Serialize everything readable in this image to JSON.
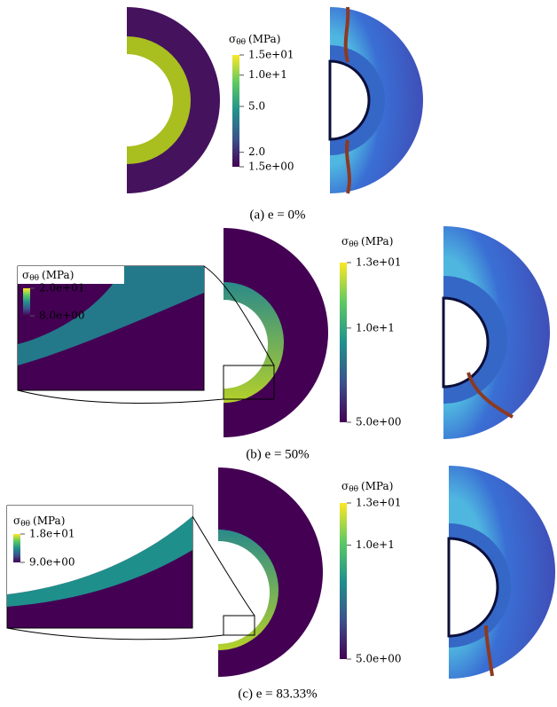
{
  "panels": [
    {
      "caption": "(a) e = 0%",
      "colorbar": {
        "symbol": "σ",
        "subscript": "θθ",
        "unit": "(MPa)",
        "ticks": [
          "1.5e+01",
          "1.0e+1",
          "5.0",
          "2.0",
          "1.5e+00"
        ]
      }
    },
    {
      "caption": "(b) e = 50%",
      "colorbar": {
        "symbol": "σ",
        "subscript": "θθ",
        "unit": "(MPa)",
        "ticks": [
          "1.3e+01",
          "1.0e+1",
          "5.0e+00"
        ]
      },
      "inset": {
        "symbol": "σ",
        "subscript": "θθ",
        "unit": "(MPa)",
        "ticks": [
          "2.0e+01",
          "8.0e+00"
        ]
      }
    },
    {
      "caption": "(c) e = 83.33%",
      "colorbar": {
        "symbol": "σ",
        "subscript": "θθ",
        "unit": "(MPa)",
        "ticks": [
          "1.3e+01",
          "1.0e+1",
          "5.0e+00"
        ]
      },
      "inset": {
        "symbol": "σ",
        "subscript": "θθ",
        "unit": "(MPa)",
        "ticks": [
          "1.8e+01",
          "9.0e+00"
        ]
      }
    }
  ]
}
